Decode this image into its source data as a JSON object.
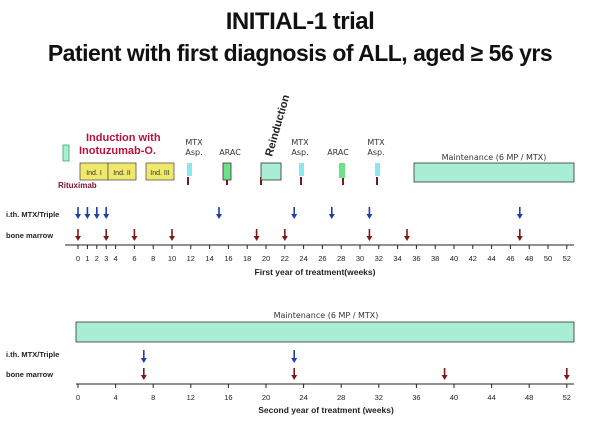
{
  "title": {
    "line1": "INITIAL-1 trial",
    "line2": "Patient with first diagnosis of ALL, aged ≥ 56 yrs"
  },
  "labels": {
    "induction": "Induction with",
    "inotuzumab": "Inotuzumab-O.",
    "rituximab": "Rituximab",
    "ith": "i.th. MTX/Triple",
    "bone_marrow": "bone marrow",
    "reinduction": "Reinduction",
    "mtx1_a": "MTX",
    "mtx1_b": "Asp.",
    "arac1": "ARAC",
    "mtx2_a": "MTX",
    "mtx2_b": "Asp.",
    "arac2": "ARAC",
    "mtx3_a": "MTX",
    "mtx3_b": "Asp.",
    "maintenance1": "Maintenance (6 MP / MTX)",
    "maintenance2": "Maintenance (6 MP / MTX)",
    "ind1": "Ind. I",
    "ind2": "Ind. II",
    "ind3": "Ind. III",
    "axis1_title": "First year of treatment(weeks)",
    "axis2_title": "Second year of treatment (weeks)"
  },
  "year1": {
    "ticks": [
      0,
      1,
      2,
      3,
      4,
      6,
      8,
      10,
      12,
      14,
      16,
      18,
      20,
      22,
      24,
      26,
      28,
      30,
      32,
      34,
      36,
      38,
      40,
      42,
      44,
      46,
      48,
      50,
      52
    ],
    "ith_weeks": [
      0,
      1,
      2,
      3,
      15,
      23,
      27,
      31,
      47
    ],
    "bone_marrow_weeks": [
      0,
      3,
      6,
      10,
      19,
      22,
      31,
      35,
      47
    ]
  },
  "year2": {
    "ticks": [
      0,
      4,
      8,
      12,
      16,
      20,
      24,
      28,
      32,
      36,
      40,
      44,
      48,
      52
    ],
    "ith_weeks": [
      7,
      23
    ],
    "bone_marrow_weeks": [
      7,
      23,
      39,
      52
    ]
  },
  "colors": {
    "induction_text": "#b5123a",
    "rituximab_text": "#7a1030",
    "block_yellow": "#efe86a",
    "block_green": "#a8edd4",
    "block_green_bright": "#6fe08a",
    "block_cyan": "#8ee6f2",
    "arrow_blue": "#1f3fa8",
    "arrow_red": "#7a1a1a"
  }
}
